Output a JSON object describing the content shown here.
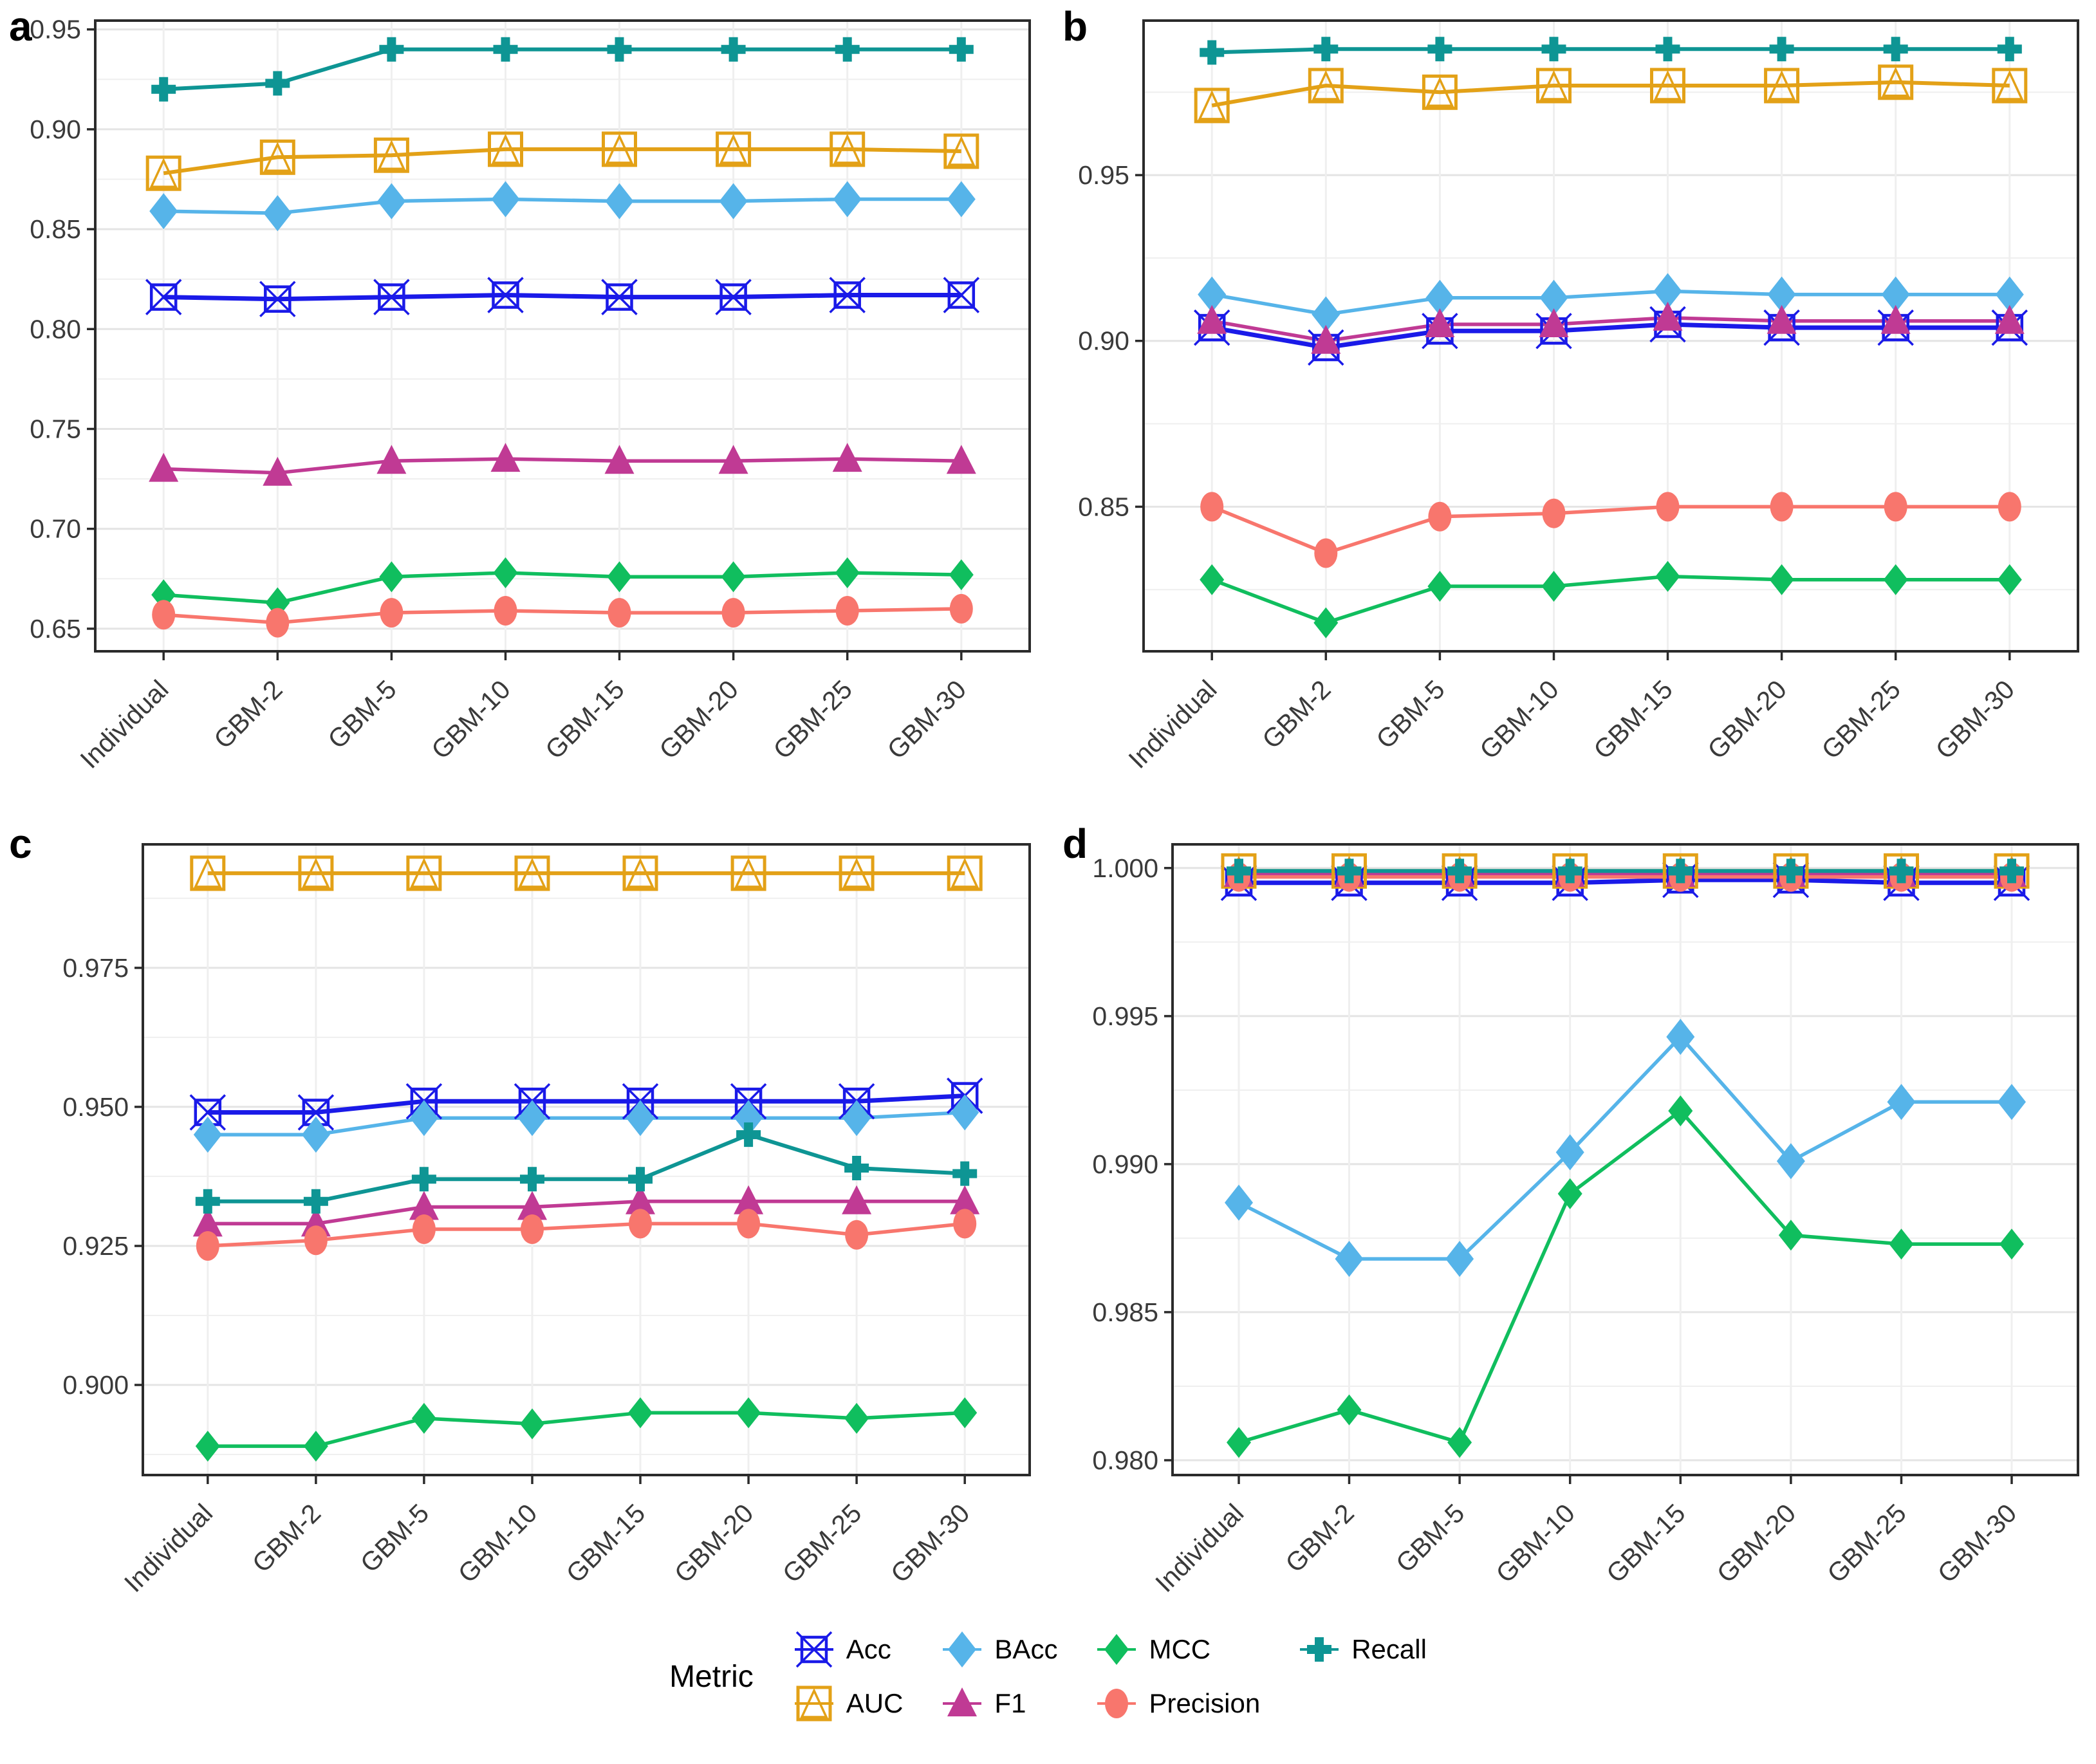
{
  "legend": {
    "title": "Metric",
    "items": [
      {
        "label": "Acc",
        "metric": "Acc"
      },
      {
        "label": "AUC",
        "metric": "AUC"
      },
      {
        "label": "BAcc",
        "metric": "BAcc"
      },
      {
        "label": "F1",
        "metric": "F1"
      },
      {
        "label": "MCC",
        "metric": "MCC"
      },
      {
        "label": "Precision",
        "metric": "Precision"
      },
      {
        "label": "Recall",
        "metric": "Recall"
      }
    ]
  },
  "style": {
    "colors": {
      "Acc": "#1a1ae8",
      "AUC": "#e3a117",
      "BAcc": "#56b4e9",
      "F1": "#c03a94",
      "MCC": "#10be5e",
      "Precision": "#f8766d",
      "Recall": "#0e9594"
    },
    "shapes": {
      "Acc": "square-x",
      "AUC": "square-triangle",
      "BAcc": "diamond-big",
      "F1": "triangle",
      "MCC": "diamond",
      "Precision": "circle",
      "Recall": "plus"
    },
    "grid_major_color": "#e4e4e4",
    "grid_minor_color": "#efefef",
    "axis_color": "#2b2b2b",
    "tick_label_color": "#3a3a3a"
  },
  "chart_data": [
    {
      "type": "line",
      "title": "a",
      "categories": [
        "Individual",
        "GBM-2",
        "GBM-5",
        "GBM-10",
        "GBM-15",
        "GBM-20",
        "GBM-25",
        "GBM-30"
      ],
      "xlabel": "",
      "ylabel": "",
      "ylim": [
        0.6387,
        0.9544
      ],
      "yticks": [
        0.65,
        0.7,
        0.75,
        0.8,
        0.85,
        0.9,
        0.95
      ],
      "ytick_labels": [
        "0.65",
        "0.70",
        "0.75",
        "0.80",
        "0.85",
        "0.90",
        "0.95"
      ],
      "grid": true,
      "legend_position": "bottom-shared",
      "series": [
        {
          "name": "Acc",
          "values": [
            0.816,
            0.815,
            0.816,
            0.817,
            0.816,
            0.816,
            0.817,
            0.817
          ]
        },
        {
          "name": "AUC",
          "values": [
            0.878,
            0.886,
            0.887,
            0.89,
            0.89,
            0.89,
            0.89,
            0.889
          ]
        },
        {
          "name": "BAcc",
          "values": [
            0.859,
            0.858,
            0.864,
            0.865,
            0.864,
            0.864,
            0.865,
            0.865
          ]
        },
        {
          "name": "F1",
          "values": [
            0.73,
            0.728,
            0.734,
            0.735,
            0.734,
            0.734,
            0.735,
            0.734
          ]
        },
        {
          "name": "MCC",
          "values": [
            0.667,
            0.663,
            0.676,
            0.678,
            0.676,
            0.676,
            0.678,
            0.677
          ]
        },
        {
          "name": "Precision",
          "values": [
            0.657,
            0.653,
            0.658,
            0.659,
            0.658,
            0.658,
            0.659,
            0.66
          ]
        },
        {
          "name": "Recall",
          "values": [
            0.92,
            0.923,
            0.94,
            0.94,
            0.94,
            0.94,
            0.94,
            0.94
          ]
        }
      ]
    },
    {
      "type": "line",
      "title": "b",
      "categories": [
        "Individual",
        "GBM-2",
        "GBM-5",
        "GBM-10",
        "GBM-15",
        "GBM-20",
        "GBM-25",
        "GBM-30"
      ],
      "xlabel": "",
      "ylabel": "",
      "ylim": [
        0.8064,
        0.9966
      ],
      "yticks": [
        0.85,
        0.9,
        0.95
      ],
      "ytick_labels": [
        "0.85",
        "0.90",
        "0.95"
      ],
      "grid": true,
      "legend_position": "bottom-shared",
      "series": [
        {
          "name": "Acc",
          "values": [
            0.904,
            0.898,
            0.903,
            0.903,
            0.905,
            0.904,
            0.904,
            0.904
          ]
        },
        {
          "name": "AUC",
          "values": [
            0.971,
            0.977,
            0.975,
            0.977,
            0.977,
            0.977,
            0.978,
            0.977
          ]
        },
        {
          "name": "BAcc",
          "values": [
            0.914,
            0.908,
            0.913,
            0.913,
            0.915,
            0.914,
            0.914,
            0.914
          ]
        },
        {
          "name": "F1",
          "values": [
            0.906,
            0.9,
            0.905,
            0.905,
            0.907,
            0.906,
            0.906,
            0.906
          ]
        },
        {
          "name": "MCC",
          "values": [
            0.828,
            0.815,
            0.826,
            0.826,
            0.829,
            0.828,
            0.828,
            0.828
          ]
        },
        {
          "name": "Precision",
          "values": [
            0.85,
            0.836,
            0.847,
            0.848,
            0.85,
            0.85,
            0.85,
            0.85
          ]
        },
        {
          "name": "Recall",
          "values": [
            0.987,
            0.988,
            0.988,
            0.988,
            0.988,
            0.988,
            0.988,
            0.988
          ]
        }
      ]
    },
    {
      "type": "line",
      "title": "c",
      "categories": [
        "Individual",
        "GBM-2",
        "GBM-5",
        "GBM-10",
        "GBM-15",
        "GBM-20",
        "GBM-25",
        "GBM-30"
      ],
      "xlabel": "",
      "ylabel": "",
      "ylim": [
        0.8838,
        0.9972
      ],
      "yticks": [
        0.9,
        0.925,
        0.95,
        0.975
      ],
      "ytick_labels": [
        "0.900",
        "0.925",
        "0.950",
        "0.975"
      ],
      "grid": true,
      "legend_position": "bottom-shared",
      "series": [
        {
          "name": "Acc",
          "values": [
            0.949,
            0.949,
            0.951,
            0.951,
            0.951,
            0.951,
            0.951,
            0.952
          ]
        },
        {
          "name": "AUC",
          "values": [
            0.992,
            0.992,
            0.992,
            0.992,
            0.992,
            0.992,
            0.992,
            0.992
          ]
        },
        {
          "name": "BAcc",
          "values": [
            0.945,
            0.945,
            0.948,
            0.948,
            0.948,
            0.948,
            0.948,
            0.949
          ]
        },
        {
          "name": "F1",
          "values": [
            0.929,
            0.929,
            0.932,
            0.932,
            0.933,
            0.933,
            0.933,
            0.933
          ]
        },
        {
          "name": "MCC",
          "values": [
            0.889,
            0.889,
            0.894,
            0.893,
            0.895,
            0.895,
            0.894,
            0.895
          ]
        },
        {
          "name": "Precision",
          "values": [
            0.925,
            0.926,
            0.928,
            0.928,
            0.929,
            0.929,
            0.927,
            0.929
          ]
        },
        {
          "name": "Recall",
          "values": [
            0.933,
            0.933,
            0.937,
            0.937,
            0.937,
            0.945,
            0.939,
            0.938
          ]
        }
      ]
    },
    {
      "type": "line",
      "title": "d",
      "categories": [
        "Individual",
        "GBM-2",
        "GBM-5",
        "GBM-10",
        "GBM-15",
        "GBM-20",
        "GBM-25",
        "GBM-30"
      ],
      "xlabel": "",
      "ylabel": "",
      "ylim": [
        0.9795,
        1.0008
      ],
      "yticks": [
        0.98,
        0.985,
        0.99,
        0.995,
        1.0
      ],
      "ytick_labels": [
        "0.980",
        "0.985",
        "0.990",
        "0.995",
        "1.000"
      ],
      "grid": true,
      "legend_position": "bottom-shared",
      "series": [
        {
          "name": "Acc",
          "values": [
            0.9995,
            0.9995,
            0.9995,
            0.9995,
            0.9996,
            0.9996,
            0.9995,
            0.9995
          ]
        },
        {
          "name": "AUC",
          "values": [
            0.9999,
            0.9999,
            0.9999,
            0.9999,
            0.9999,
            0.9999,
            0.9999,
            0.9999
          ]
        },
        {
          "name": "BAcc",
          "values": [
            0.9887,
            0.9868,
            0.9868,
            0.9904,
            0.9943,
            0.9901,
            0.9921,
            0.9921
          ]
        },
        {
          "name": "F1",
          "values": [
            0.9998,
            0.9998,
            0.9998,
            0.9998,
            0.9998,
            0.9998,
            0.9998,
            0.9998
          ]
        },
        {
          "name": "MCC",
          "values": [
            0.9806,
            0.9817,
            0.9806,
            0.989,
            0.9918,
            0.9876,
            0.9873,
            0.9873
          ]
        },
        {
          "name": "Precision",
          "values": [
            0.9997,
            0.9997,
            0.9997,
            0.9997,
            0.9997,
            0.9997,
            0.9997,
            0.9997
          ]
        },
        {
          "name": "Recall",
          "values": [
            0.9999,
            0.9999,
            0.9999,
            0.9999,
            0.9999,
            0.9999,
            0.9999,
            0.9999
          ]
        }
      ]
    }
  ]
}
